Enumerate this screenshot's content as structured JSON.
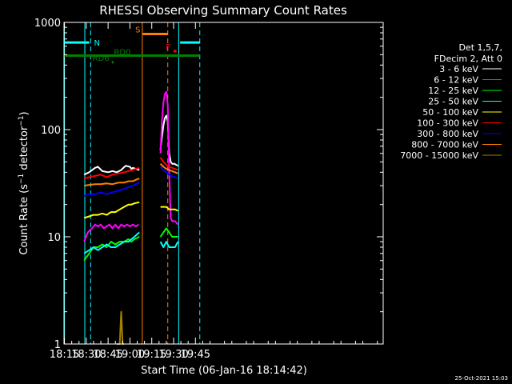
{
  "chart_data": {
    "type": "line",
    "title": "RHESSI Observing Summary Count Rates",
    "xlabel": "Start Time (06-Jan-16 18:14:42)",
    "ylabel_prefix": "Count Rate (s",
    "ylabel_sup": "−1",
    "ylabel_mid": " detector",
    "ylabel_close": ")",
    "ylog": true,
    "xlim_min": [
      1094.7,
      1314
    ],
    "ylim": [
      1,
      1000
    ],
    "x_ticks": [
      {
        "v": 1095,
        "label": "18:15"
      },
      {
        "v": 1110,
        "label": "18:30"
      },
      {
        "v": 1125,
        "label": "18:45"
      },
      {
        "v": 1140,
        "label": "19:00"
      },
      {
        "v": 1155,
        "label": "19:15"
      },
      {
        "v": 1170,
        "label": "19:30"
      },
      {
        "v": 1185,
        "label": "19:45"
      }
    ],
    "y_ticks": [
      {
        "v": 1,
        "label": "1"
      },
      {
        "v": 10,
        "label": "10"
      },
      {
        "v": 100,
        "label": "100"
      },
      {
        "v": 1000,
        "label": "1000"
      }
    ],
    "legend_header": [
      "Det 1,5,7,",
      "FDecim 2, Att 0"
    ],
    "legend_position": "right",
    "series": [
      {
        "name": "3 - 6 keV",
        "color": "#ffffff",
        "segments": [
          [
            [
              1108.5,
              38
            ],
            [
              1112,
              40
            ],
            [
              1116,
              44
            ],
            [
              1118,
              45
            ],
            [
              1121,
              41
            ],
            [
              1125,
              40
            ],
            [
              1128,
              41
            ],
            [
              1131,
              40
            ],
            [
              1134,
              42
            ],
            [
              1137,
              46
            ],
            [
              1140,
              45
            ],
            [
              1141,
              43
            ],
            [
              1142,
              44
            ],
            [
              1144,
              43
            ],
            [
              1146.5,
              42
            ]
          ],
          [
            [
              1161,
              65
            ],
            [
              1162,
              85
            ],
            [
              1163,
              110
            ],
            [
              1164,
              128
            ],
            [
              1165,
              135
            ],
            [
              1166,
              120
            ],
            [
              1167,
              60
            ],
            [
              1168,
              50
            ],
            [
              1169,
              48
            ],
            [
              1170.5,
              48
            ],
            [
              1173,
              46
            ]
          ]
        ]
      },
      {
        "name": "6 - 12 keV",
        "color": "#ff00ff",
        "segments": [
          [
            [
              1108.5,
              9
            ],
            [
              1111,
              11
            ],
            [
              1114,
              12
            ],
            [
              1116,
              13
            ],
            [
              1118,
              12.5
            ],
            [
              1120,
              13
            ],
            [
              1122,
              12
            ],
            [
              1124,
              12.5
            ],
            [
              1126,
              13
            ],
            [
              1128,
              12
            ],
            [
              1130,
              13
            ],
            [
              1132,
              12
            ],
            [
              1134,
              13
            ],
            [
              1136,
              12.5
            ],
            [
              1138,
              13
            ],
            [
              1140,
              12.5
            ],
            [
              1142,
              13
            ],
            [
              1144,
              12.5
            ],
            [
              1146,
              13
            ]
          ],
          [
            [
              1161,
              60
            ],
            [
              1162,
              120
            ],
            [
              1163,
              180
            ],
            [
              1164,
              215
            ],
            [
              1165,
              225
            ],
            [
              1166,
              170
            ],
            [
              1167,
              40
            ],
            [
              1168,
              15
            ],
            [
              1169,
              14
            ],
            [
              1171,
              14
            ],
            [
              1173,
              13
            ]
          ]
        ]
      },
      {
        "name": "12 - 25 keV",
        "color": "#00ff00",
        "segments": [
          [
            [
              1108.5,
              6
            ],
            [
              1112,
              7
            ],
            [
              1115,
              8
            ],
            [
              1118,
              8
            ],
            [
              1121,
              8.5
            ],
            [
              1124,
              8
            ],
            [
              1127,
              9
            ],
            [
              1130,
              8.5
            ],
            [
              1133,
              9
            ],
            [
              1136,
              9
            ],
            [
              1139,
              9.5
            ],
            [
              1141,
              9
            ],
            [
              1143,
              9.5
            ],
            [
              1146.5,
              10
            ]
          ],
          [
            [
              1161,
              10
            ],
            [
              1163,
              11
            ],
            [
              1165,
              12
            ],
            [
              1167,
              11
            ],
            [
              1169,
              10
            ],
            [
              1171,
              10
            ],
            [
              1173,
              10
            ]
          ]
        ]
      },
      {
        "name": "25 - 50 keV",
        "color": "#00ffff",
        "segments": [
          [
            [
              1108.5,
              7
            ],
            [
              1112,
              7.5
            ],
            [
              1115,
              8
            ],
            [
              1118,
              7.5
            ],
            [
              1121,
              8
            ],
            [
              1124,
              8.5
            ],
            [
              1127,
              8
            ],
            [
              1130,
              8
            ],
            [
              1133,
              8.5
            ],
            [
              1136,
              9
            ],
            [
              1139,
              9
            ],
            [
              1141,
              9.5
            ],
            [
              1143,
              10
            ],
            [
              1146.5,
              11
            ]
          ],
          [
            [
              1161,
              9
            ],
            [
              1163,
              8
            ],
            [
              1165,
              9
            ],
            [
              1167,
              8
            ],
            [
              1169,
              8
            ],
            [
              1171,
              8
            ],
            [
              1173,
              9
            ]
          ]
        ]
      },
      {
        "name": "50 - 100 keV",
        "color": "#ffff00",
        "segments": [
          [
            [
              1108.5,
              15
            ],
            [
              1112,
              15.5
            ],
            [
              1115,
              16
            ],
            [
              1118,
              16
            ],
            [
              1121,
              16.5
            ],
            [
              1124,
              16
            ],
            [
              1127,
              17
            ],
            [
              1130,
              17
            ],
            [
              1133,
              18
            ],
            [
              1136,
              19
            ],
            [
              1139,
              20
            ],
            [
              1141,
              20
            ],
            [
              1143,
              20.5
            ],
            [
              1146.5,
              21
            ]
          ],
          [
            [
              1161,
              19
            ],
            [
              1163,
              19
            ],
            [
              1165,
              19
            ],
            [
              1167,
              18
            ],
            [
              1169,
              18
            ],
            [
              1171,
              18
            ],
            [
              1173,
              17.5
            ]
          ]
        ]
      },
      {
        "name": "100 - 300 keV",
        "color": "#ff0000",
        "segments": [
          [
            [
              1108.5,
              35
            ],
            [
              1112,
              36
            ],
            [
              1116,
              37
            ],
            [
              1120,
              38
            ],
            [
              1124,
              36
            ],
            [
              1128,
              38
            ],
            [
              1132,
              39
            ],
            [
              1136,
              40
            ],
            [
              1139,
              41
            ],
            [
              1142,
              42
            ],
            [
              1144,
              43
            ],
            [
              1146.5,
              44
            ]
          ],
          [
            [
              1161,
              55
            ],
            [
              1163,
              50
            ],
            [
              1165,
              47
            ],
            [
              1167,
              45
            ],
            [
              1169,
              44
            ],
            [
              1171,
              43
            ],
            [
              1173,
              42
            ]
          ]
        ]
      },
      {
        "name": "300 - 800 keV",
        "color": "#0000ff",
        "segments": [
          [
            [
              1108.5,
              24
            ],
            [
              1112,
              25
            ],
            [
              1116,
              25
            ],
            [
              1120,
              26
            ],
            [
              1124,
              25
            ],
            [
              1128,
              26
            ],
            [
              1132,
              27
            ],
            [
              1136,
              28
            ],
            [
              1139,
              29
            ],
            [
              1142,
              30
            ],
            [
              1144,
              31
            ],
            [
              1146.5,
              32
            ]
          ],
          [
            [
              1161,
              45
            ],
            [
              1163,
              42
            ],
            [
              1165,
              40
            ],
            [
              1167,
              38
            ],
            [
              1169,
              37
            ],
            [
              1171,
              36
            ],
            [
              1173,
              35
            ]
          ]
        ]
      },
      {
        "name": "800 - 7000 keV",
        "color": "#ff8000",
        "segments": [
          [
            [
              1108.5,
              30
            ],
            [
              1112,
              30.5
            ],
            [
              1116,
              31
            ],
            [
              1120,
              31
            ],
            [
              1124,
              31.5
            ],
            [
              1128,
              31
            ],
            [
              1132,
              32
            ],
            [
              1136,
              32
            ],
            [
              1139,
              33
            ],
            [
              1142,
              33
            ],
            [
              1144,
              34
            ],
            [
              1146.5,
              35
            ]
          ],
          [
            [
              1161,
              48
            ],
            [
              1163,
              45
            ],
            [
              1165,
              43
            ],
            [
              1167,
              42
            ],
            [
              1169,
              41
            ],
            [
              1171,
              40
            ],
            [
              1173,
              39
            ]
          ]
        ]
      },
      {
        "name": "7000 - 15000 keV",
        "color": "#a08000",
        "segments": [
          [
            [
              1131,
              1
            ],
            [
              1133,
              1
            ],
            [
              1134,
              2
            ],
            [
              1135,
              1
            ],
            [
              1136,
              1
            ]
          ]
        ]
      }
    ],
    "state_bars": [
      {
        "label": "N",
        "color": "#00ffff",
        "y": 650,
        "ranges": [
          [
            1094.7,
            1112
          ],
          [
            1174.5,
            1188
          ]
        ]
      },
      {
        "label": "S",
        "color": "#ff8000",
        "y": 780,
        "ranges": [
          [
            1148.8,
            1166
          ]
        ]
      },
      {
        "label": "F",
        "color": "#ff0000",
        "y": 540,
        "ranges": [
          [
            1170,
            1172
          ]
        ]
      },
      {
        "label": "RD0",
        "color": "#008000",
        "y": 490,
        "ranges": [
          [
            1094.7,
            1188
          ]
        ]
      },
      {
        "label": "RD6",
        "color": "#008000",
        "y": 425,
        "ranges": [
          [
            1127.5,
            1128.8
          ]
        ]
      }
    ],
    "vlines": [
      {
        "x": 1095,
        "color": "#00ffff",
        "dashed": false
      },
      {
        "x": 1109,
        "color": "#00ffff",
        "dashed": false
      },
      {
        "x": 1113,
        "color": "#00ffff",
        "dashed": true
      },
      {
        "x": 1148.5,
        "color": "#ff8000",
        "dashed": false
      },
      {
        "x": 1166,
        "color": "#ff8000",
        "dashed": true
      },
      {
        "x": 1173.5,
        "color": "#00ffff",
        "dashed": false
      },
      {
        "x": 1188,
        "color": "#00ffff",
        "dashed": true
      }
    ]
  },
  "footer_timestamp": "25-Oct-2021 15:03"
}
